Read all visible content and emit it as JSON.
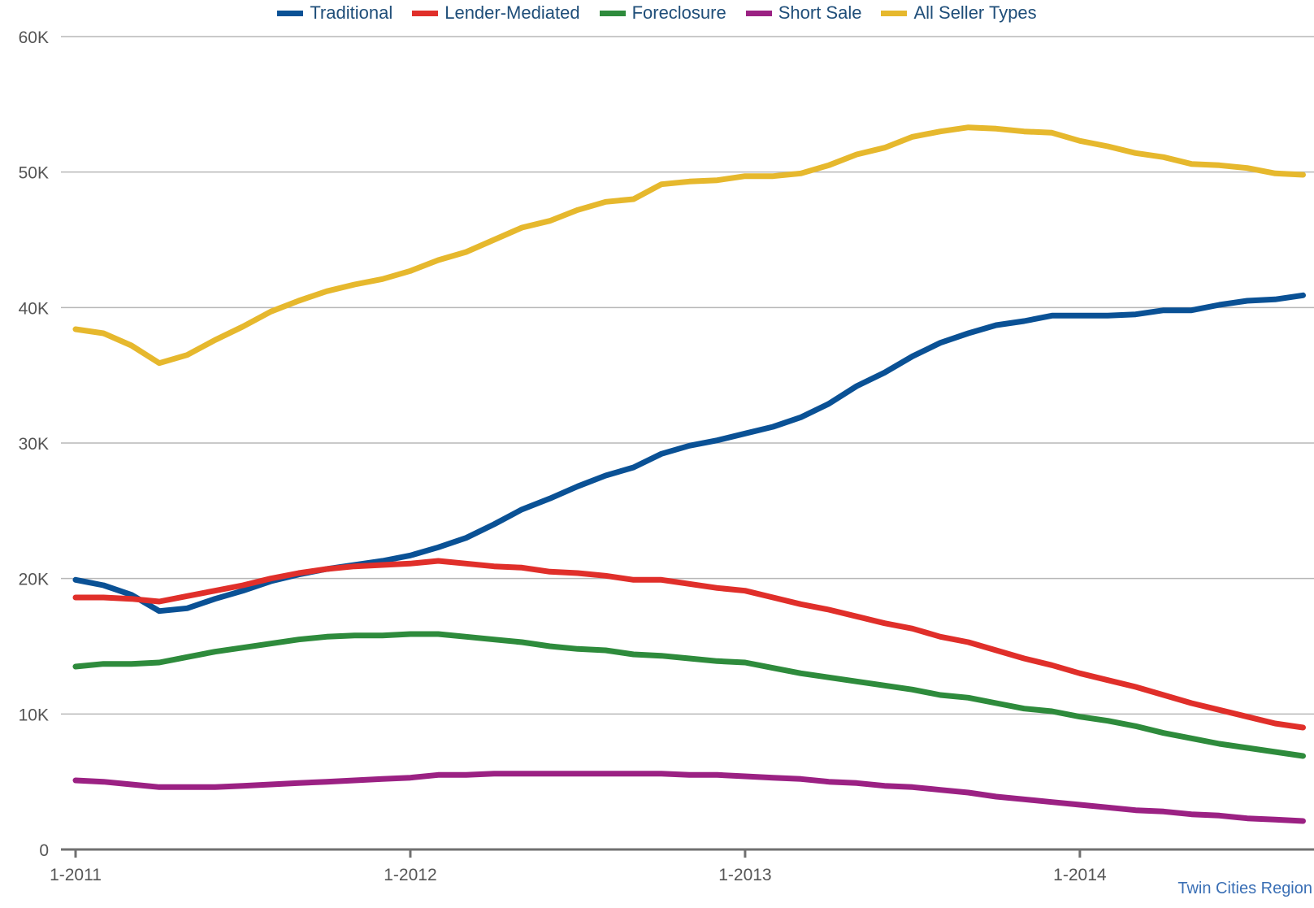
{
  "chart_data": {
    "type": "line",
    "title": "",
    "xlabel": "",
    "ylabel": "",
    "ylim": [
      0,
      60000
    ],
    "y_ticks": [
      {
        "value": 0,
        "label": "0"
      },
      {
        "value": 10000,
        "label": "10K"
      },
      {
        "value": 20000,
        "label": "20K"
      },
      {
        "value": 30000,
        "label": "30K"
      },
      {
        "value": 40000,
        "label": "40K"
      },
      {
        "value": 50000,
        "label": "50K"
      },
      {
        "value": 60000,
        "label": "60K"
      }
    ],
    "x_ticks": [
      {
        "index": 0,
        "label": "1-2011"
      },
      {
        "index": 12,
        "label": "1-2012"
      },
      {
        "index": 24,
        "label": "1-2013"
      },
      {
        "index": 36,
        "label": "1-2014"
      }
    ],
    "x_start": "1-2011",
    "x_end": "9-2014",
    "grid": true,
    "legend_position": "top-center",
    "series": [
      {
        "name": "Traditional",
        "color": "#0a5195",
        "values": [
          19900,
          19500,
          18800,
          17600,
          17800,
          18500,
          19100,
          19800,
          20300,
          20700,
          21000,
          21300,
          21700,
          22300,
          23000,
          24000,
          25100,
          25900,
          26800,
          27600,
          28200,
          29200,
          29800,
          30200,
          30700,
          31200,
          31900,
          32900,
          34200,
          35200,
          36400,
          37400,
          38100,
          38700,
          39000,
          39400,
          39400,
          39400,
          39500,
          39800,
          39800,
          40200,
          40500,
          40600,
          40900
        ]
      },
      {
        "name": "Lender-Mediated",
        "color": "#e02f2a",
        "values": [
          18600,
          18600,
          18500,
          18300,
          18700,
          19100,
          19500,
          20000,
          20400,
          20700,
          20900,
          21000,
          21100,
          21300,
          21100,
          20900,
          20800,
          20500,
          20400,
          20200,
          19900,
          19900,
          19600,
          19300,
          19100,
          18600,
          18100,
          17700,
          17200,
          16700,
          16300,
          15700,
          15300,
          14700,
          14100,
          13600,
          13000,
          12500,
          12000,
          11400,
          10800,
          10300,
          9800,
          9300,
          9000
        ]
      },
      {
        "name": "Foreclosure",
        "color": "#2e8b3c",
        "values": [
          13500,
          13700,
          13700,
          13800,
          14200,
          14600,
          14900,
          15200,
          15500,
          15700,
          15800,
          15800,
          15900,
          15900,
          15700,
          15500,
          15300,
          15000,
          14800,
          14700,
          14400,
          14300,
          14100,
          13900,
          13800,
          13400,
          13000,
          12700,
          12400,
          12100,
          11800,
          11400,
          11200,
          10800,
          10400,
          10200,
          9800,
          9500,
          9100,
          8600,
          8200,
          7800,
          7500,
          7200,
          6900
        ]
      },
      {
        "name": "Short Sale",
        "color": "#9b2183",
        "values": [
          5100,
          5000,
          4800,
          4600,
          4600,
          4600,
          4700,
          4800,
          4900,
          5000,
          5100,
          5200,
          5300,
          5500,
          5500,
          5600,
          5600,
          5600,
          5600,
          5600,
          5600,
          5600,
          5500,
          5500,
          5400,
          5300,
          5200,
          5000,
          4900,
          4700,
          4600,
          4400,
          4200,
          3900,
          3700,
          3500,
          3300,
          3100,
          2900,
          2800,
          2600,
          2500,
          2300,
          2200,
          2100
        ]
      },
      {
        "name": "All Seller Types",
        "color": "#e6b82d",
        "values": [
          38400,
          38100,
          37200,
          35900,
          36500,
          37600,
          38600,
          39700,
          40500,
          41200,
          41700,
          42100,
          42700,
          43500,
          44100,
          45000,
          45900,
          46400,
          47200,
          47800,
          48000,
          49100,
          49300,
          49400,
          49700,
          49700,
          49900,
          50500,
          51300,
          51800,
          52600,
          53000,
          53300,
          53200,
          53000,
          52900,
          52300,
          51900,
          51400,
          51100,
          50600,
          50500,
          50300,
          49900,
          49800
        ]
      }
    ]
  },
  "footnote": "Twin Cities Region"
}
